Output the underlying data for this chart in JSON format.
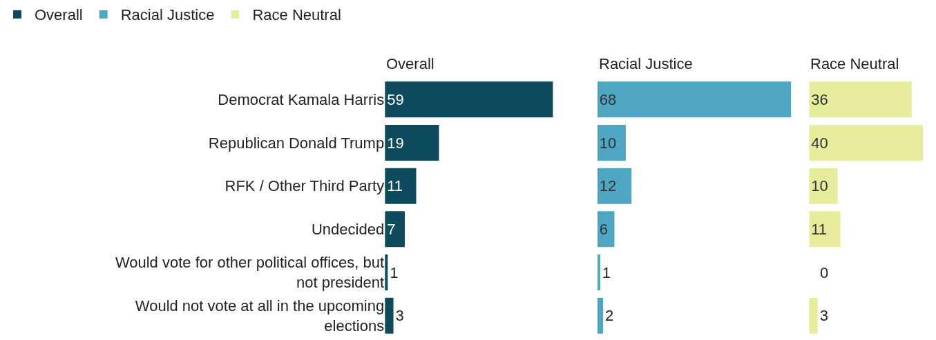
{
  "chart_data": [
    {
      "type": "bar",
      "orientation": "horizontal",
      "title": "Overall",
      "categories": [
        "Democrat Kamala Harris",
        "Republican Donald Trump",
        "RFK / Other Third Party",
        "Undecided",
        "Would vote for other political offices, but not president",
        "Would not vote at all in the upcoming elections"
      ],
      "series": [
        {
          "name": "Overall",
          "color": "#0e4b5e",
          "values": [
            59,
            19,
            11,
            7,
            1,
            3
          ]
        }
      ],
      "data_labels": true,
      "tick_labels": "y",
      "grid": false,
      "legend": "top left"
    },
    {
      "type": "bar",
      "orientation": "horizontal",
      "title": "Racial Justice",
      "categories": [
        "Democrat Kamala Harris",
        "Republican Donald Trump",
        "RFK / Other Third Party",
        "Undecided",
        "Would vote for other political offices, but not president",
        "Would not vote at all in the upcoming elections"
      ],
      "series": [
        {
          "name": "Racial Justice",
          "color": "#4ea6c2",
          "values": [
            68,
            10,
            12,
            6,
            1,
            2
          ]
        }
      ],
      "data_labels": true,
      "tick_labels": false,
      "grid": false,
      "legend": "top left"
    },
    {
      "type": "bar",
      "orientation": "horizontal",
      "title": "Race Neutral",
      "categories": [
        "Democrat Kamala Harris",
        "Republican Donald Trump",
        "RFK / Other Third Party",
        "Undecided",
        "Would vote for other political offices, but not president",
        "Would not vote at all in the upcoming elections"
      ],
      "series": [
        {
          "name": "Race Neutral",
          "color": "#e6ec9b",
          "values": [
            36,
            40,
            10,
            11,
            0,
            3
          ]
        }
      ],
      "data_labels": true,
      "tick_labels": false,
      "grid": false,
      "legend": "top left"
    }
  ]
}
